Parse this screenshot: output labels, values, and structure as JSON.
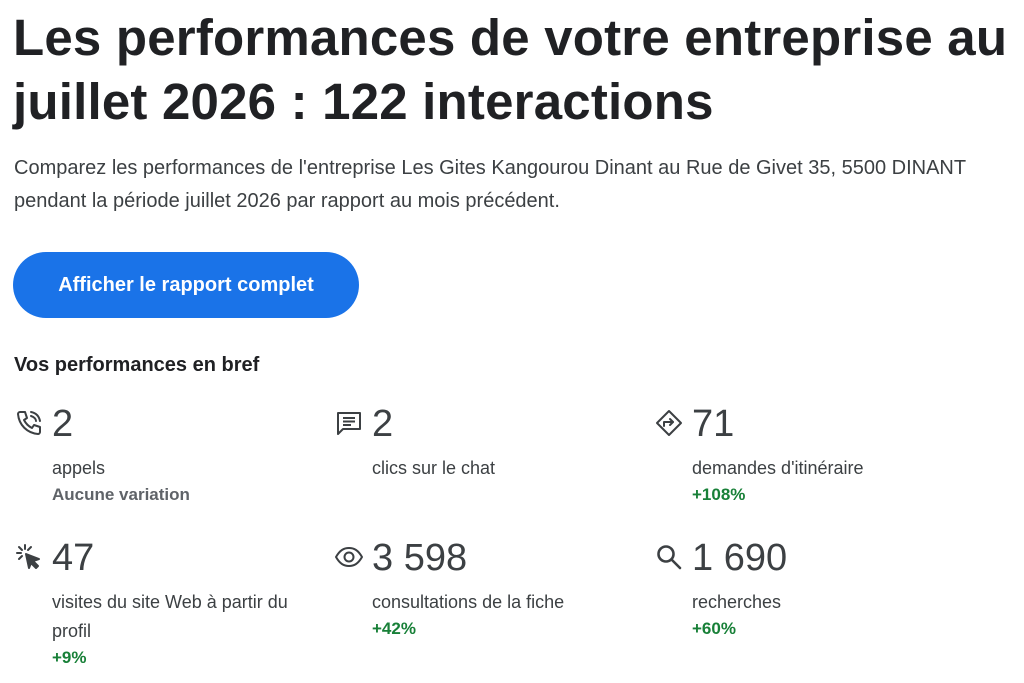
{
  "header": {
    "title": "Les performances de votre entreprise au juillet 2026 : 122 interactions",
    "subtitle": "Comparez les performances de l'entreprise Les Gites Kangourou Dinant au Rue de Givet 35, 5500 DINANT pendant la période juillet 2026 par rapport au mois précédent.",
    "cta_label": "Afficher le rapport complet"
  },
  "section": {
    "heading": "Vos performances en bref"
  },
  "metrics": [
    {
      "icon": "phone-icon",
      "value": "2",
      "label": "appels",
      "change": "Aucune variation",
      "trend": "neutral"
    },
    {
      "icon": "chat-icon",
      "value": "2",
      "label": "clics sur le chat",
      "change": "",
      "trend": "none"
    },
    {
      "icon": "directions-icon",
      "value": "71",
      "label": "demandes d'itinéraire",
      "change": "+108%",
      "trend": "positive"
    },
    {
      "icon": "click-icon",
      "value": "47",
      "label": "visites du site Web à partir du profil",
      "change": "+9%",
      "trend": "positive"
    },
    {
      "icon": "eye-icon",
      "value": "3 598",
      "label": "consultations de la fiche",
      "change": "+42%",
      "trend": "positive"
    },
    {
      "icon": "search-icon",
      "value": "1 690",
      "label": "recherches",
      "change": "+60%",
      "trend": "positive"
    }
  ],
  "colors": {
    "primary_button": "#1a73e8",
    "positive": "#188038",
    "neutral": "#5f6368",
    "text": "#202124"
  }
}
